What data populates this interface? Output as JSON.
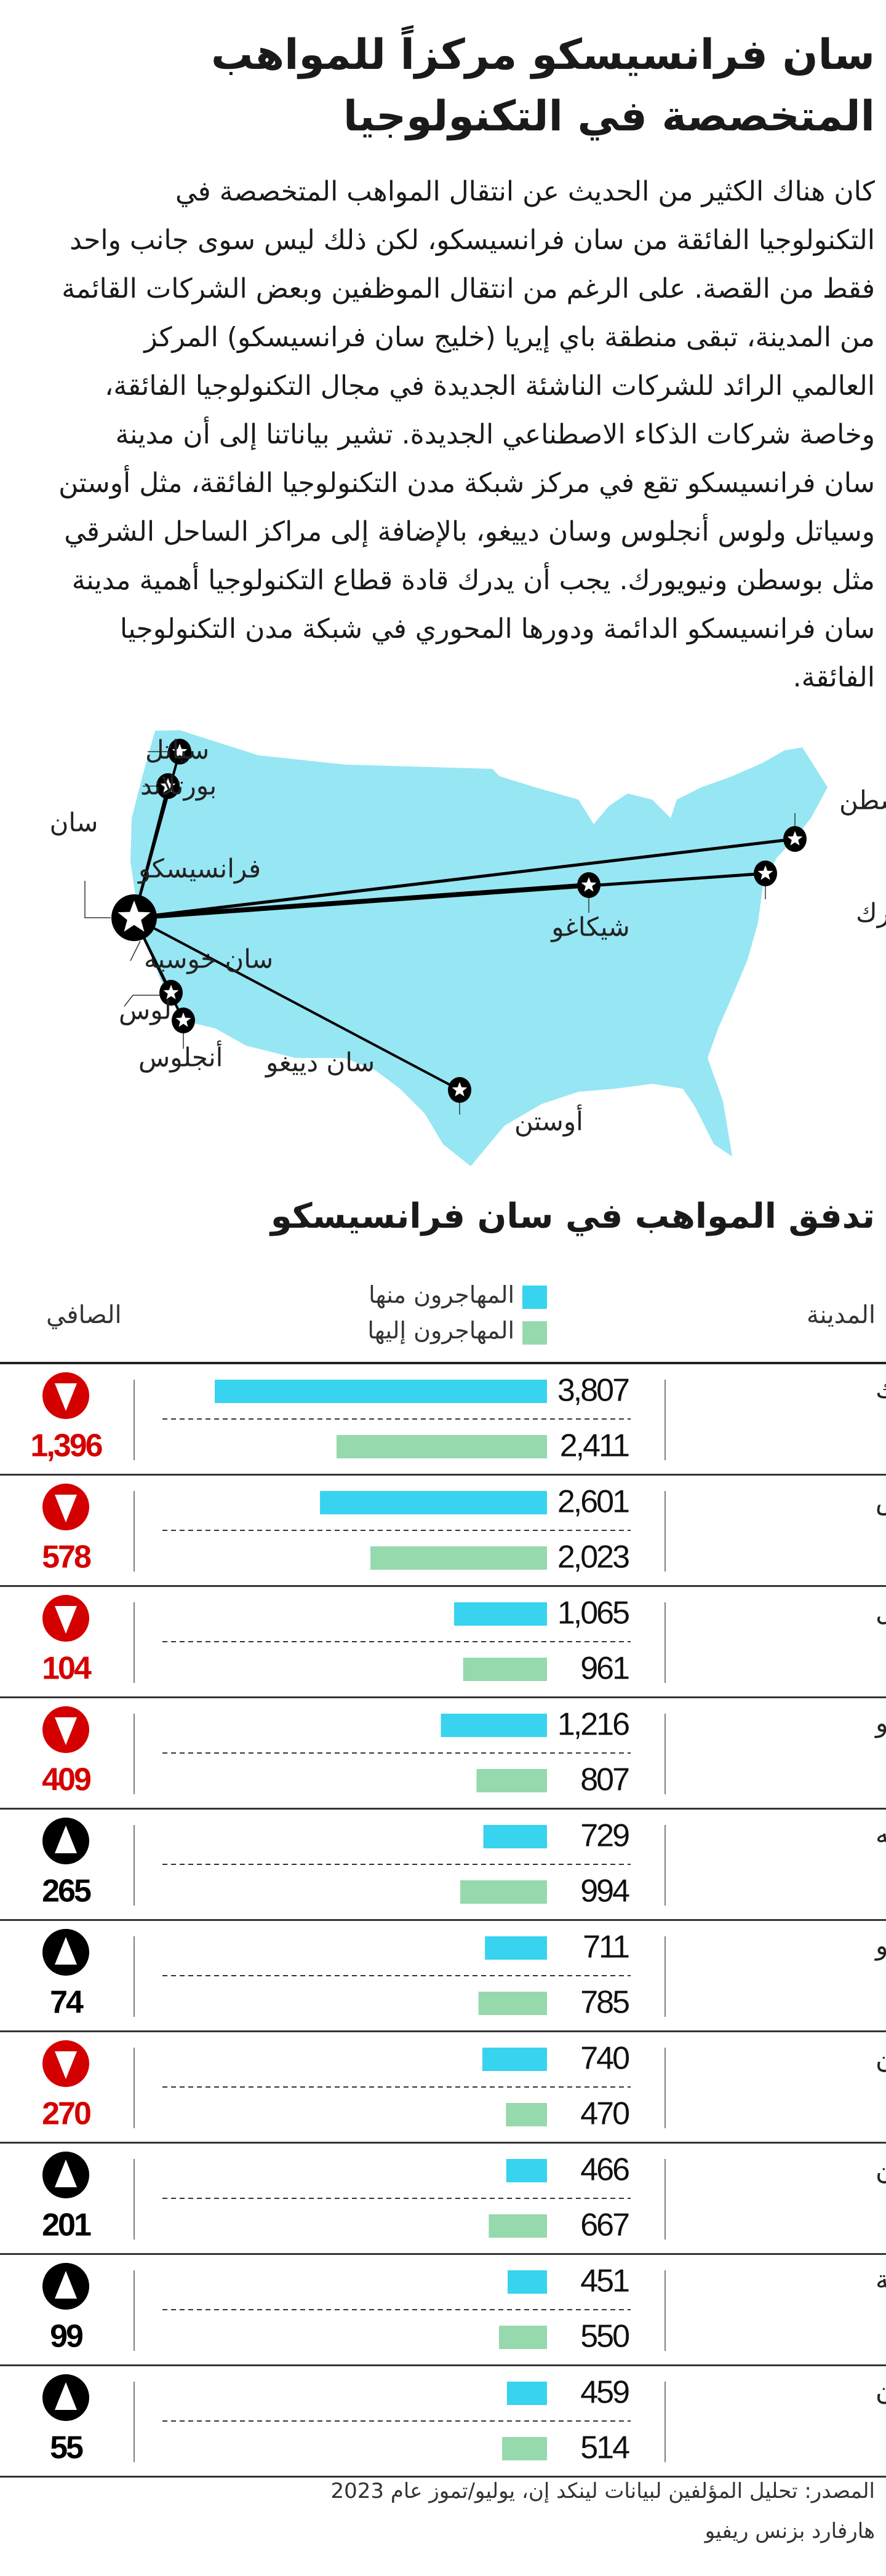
{
  "article": {
    "title": "سان فرانسيسكو مركزاً للمواهب المتخصصة في التكنولوجيا",
    "body": "كان هناك الكثير من الحديث عن انتقال المواهب المتخصصة في التكنولوجيا الفائقة من سان فرانسيسكو، لكن ذلك ليس سوى جانب واحد فقط من القصة. على الرغم من انتقال الموظفين وبعض الشركات القائمة من المدينة، تبقى منطقة باي إيريا (خليج سان فرانسيسكو) المركز العالمي الرائد للشركات الناشئة الجديدة في مجال التكنولوجيا الفائقة، وخاصة شركات الذكاء الاصطناعي الجديدة. تشير بياناتنا إلى أن مدينة سان فرانسيسكو تقع في مركز شبكة مدن التكنولوجيا الفائقة، مثل أوستن وسياتل ولوس أنجلوس وسان دييغو، بالإضافة إلى مراكز الساحل الشرقي مثل بوسطن ونيويورك. يجب أن يدرك قادة قطاع التكنولوجيا أهمية مدينة سان فرانسيسكو الدائمة ودورها المحوري في شبكة مدن التكنولوجيا الفائقة."
  },
  "map": {
    "land_color": "#97e6f3",
    "hub": "سان فرانسيسكو",
    "hub_lines": [
      "سان",
      "فرانسيسكو"
    ],
    "cities": {
      "seattle": "سياتل",
      "portland": "بورتلاند",
      "san_jose": "سان خوسيه",
      "los_angeles_1": "لوس",
      "los_angeles_2": "أنجلوس",
      "san_diego": "سان دييغو",
      "austin": "أوستن",
      "chicago": "شيكاغو",
      "new_york": "مدينة نيويورك",
      "boston": "بوسطن"
    }
  },
  "chart_data": {
    "type": "bar",
    "title": "تدفق المواهب في سان فرانسيسكو",
    "column_headers": {
      "city": "المدينة",
      "net": "الصافي"
    },
    "legend": [
      {
        "name": "المهاجرون منها",
        "color": "#38d3ee"
      },
      {
        "name": "المهاجرون إليها",
        "color": "#96d9ad"
      }
    ],
    "net_colors": {
      "down": "#d40000",
      "up": "#000000"
    },
    "categories": [
      "مدينة نيويورك",
      "لوس أنجلوس",
      "سياتل",
      "سان دييغو",
      "سان خوسيه",
      "شيكاغو",
      "أوستن",
      "بوسطن",
      "واشنطن العاصمة",
      "لندن"
    ],
    "series": [
      {
        "name": "المهاجرون منها",
        "values": [
          3807,
          2601,
          1065,
          1216,
          729,
          711,
          740,
          466,
          451,
          459
        ]
      },
      {
        "name": "المهاجرون إليها",
        "values": [
          2411,
          2023,
          961,
          807,
          994,
          785,
          470,
          667,
          550,
          514
        ]
      }
    ],
    "net": [
      {
        "value": "1,396",
        "direction": "down"
      },
      {
        "value": "578",
        "direction": "down"
      },
      {
        "value": "104",
        "direction": "down"
      },
      {
        "value": "409",
        "direction": "down"
      },
      {
        "value": "265",
        "direction": "up"
      },
      {
        "value": "74",
        "direction": "up"
      },
      {
        "value": "270",
        "direction": "down"
      },
      {
        "value": "201",
        "direction": "up"
      },
      {
        "value": "99",
        "direction": "up"
      },
      {
        "value": "55",
        "direction": "up"
      }
    ]
  },
  "footer": {
    "source": "المصدر: تحليل المؤلفين لبيانات لينكد إن، يوليو/تموز عام 2023",
    "publisher": "هارفارد بزنس ريفيو"
  }
}
